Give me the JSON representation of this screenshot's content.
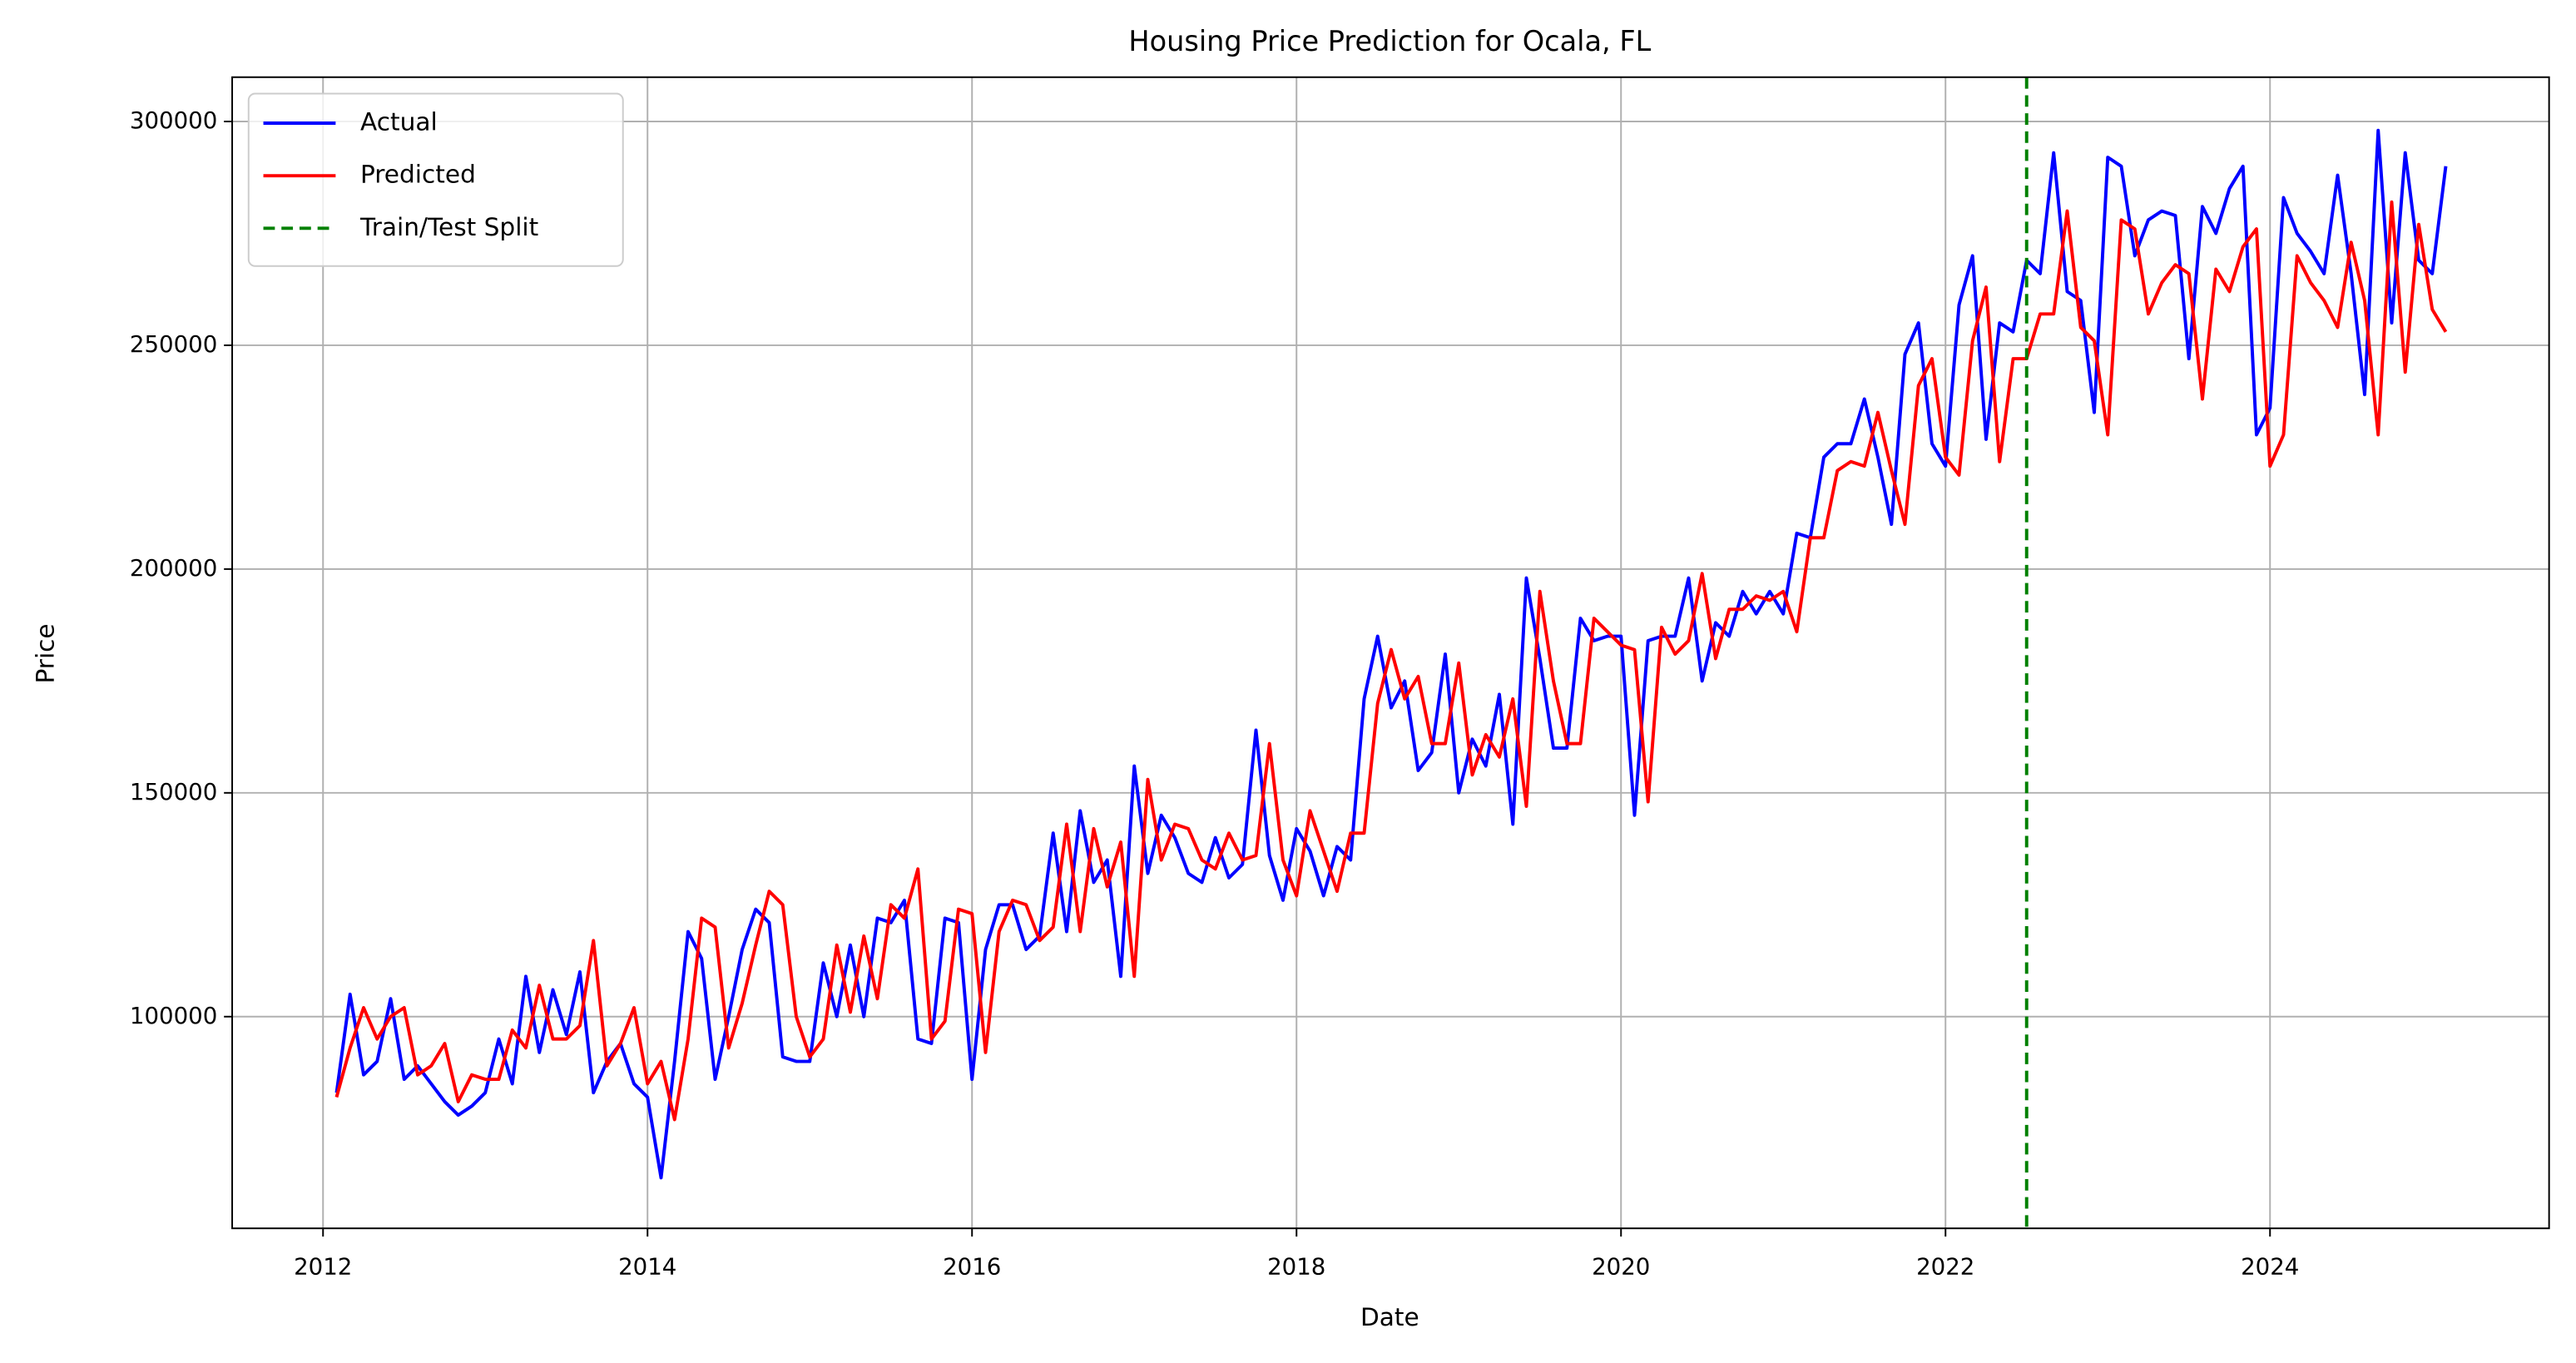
{
  "chart_data": {
    "type": "line",
    "title": "Housing Price Prediction for Ocala, FL",
    "x_label": "Date",
    "y_label": "Price",
    "x": [
      "2012-02",
      "2012-03",
      "2012-04",
      "2012-05",
      "2012-06",
      "2012-07",
      "2012-08",
      "2012-09",
      "2012-10",
      "2012-11",
      "2012-12",
      "2013-01",
      "2013-02",
      "2013-03",
      "2013-04",
      "2013-05",
      "2013-06",
      "2013-07",
      "2013-08",
      "2013-09",
      "2013-10",
      "2013-11",
      "2013-12",
      "2014-01",
      "2014-02",
      "2014-03",
      "2014-04",
      "2014-05",
      "2014-06",
      "2014-07",
      "2014-08",
      "2014-09",
      "2014-10",
      "2014-11",
      "2014-12",
      "2015-01",
      "2015-02",
      "2015-03",
      "2015-04",
      "2015-05",
      "2015-06",
      "2015-07",
      "2015-08",
      "2015-09",
      "2015-10",
      "2015-11",
      "2015-12",
      "2016-01",
      "2016-02",
      "2016-03",
      "2016-04",
      "2016-05",
      "2016-06",
      "2016-07",
      "2016-08",
      "2016-09",
      "2016-10",
      "2016-11",
      "2016-12",
      "2017-01",
      "2017-02",
      "2017-03",
      "2017-04",
      "2017-05",
      "2017-06",
      "2017-07",
      "2017-08",
      "2017-09",
      "2017-10",
      "2017-11",
      "2017-12",
      "2018-01",
      "2018-02",
      "2018-03",
      "2018-04",
      "2018-05",
      "2018-06",
      "2018-07",
      "2018-08",
      "2018-09",
      "2018-10",
      "2018-11",
      "2018-12",
      "2019-01",
      "2019-02",
      "2019-03",
      "2019-04",
      "2019-05",
      "2019-06",
      "2019-07",
      "2019-08",
      "2019-09",
      "2019-10",
      "2019-11",
      "2019-12",
      "2020-01",
      "2020-02",
      "2020-03",
      "2020-04",
      "2020-05",
      "2020-06",
      "2020-07",
      "2020-08",
      "2020-09",
      "2020-10",
      "2020-11",
      "2020-12",
      "2021-01",
      "2021-02",
      "2021-03",
      "2021-04",
      "2021-05",
      "2021-06",
      "2021-07",
      "2021-08",
      "2021-09",
      "2021-10",
      "2021-11",
      "2021-12",
      "2022-01",
      "2022-02",
      "2022-03",
      "2022-04",
      "2022-05",
      "2022-06",
      "2022-07",
      "2022-08",
      "2022-09",
      "2022-10",
      "2022-11",
      "2022-12",
      "2023-01",
      "2023-02",
      "2023-03",
      "2023-04",
      "2023-05",
      "2023-06",
      "2023-07",
      "2023-08",
      "2023-09",
      "2023-10",
      "2023-11",
      "2023-12",
      "2024-01",
      "2024-02",
      "2024-03",
      "2024-04",
      "2024-05",
      "2024-06",
      "2024-07",
      "2024-08",
      "2024-09",
      "2024-10",
      "2024-11",
      "2024-12",
      "2025-01",
      "2025-02"
    ],
    "series": [
      {
        "name": "Actual",
        "color": "#0000ff",
        "values": [
          83000,
          105000,
          87000,
          90000,
          104000,
          86000,
          89000,
          85000,
          81000,
          78000,
          80000,
          83000,
          95000,
          85000,
          109000,
          92000,
          106000,
          96000,
          110000,
          83000,
          90000,
          94000,
          85000,
          82000,
          64000,
          90000,
          119000,
          113000,
          86000,
          100000,
          115000,
          124000,
          121000,
          91000,
          90000,
          90000,
          112000,
          100000,
          116000,
          100000,
          122000,
          121000,
          126000,
          95000,
          94000,
          122000,
          121000,
          86000,
          115000,
          125000,
          125000,
          115000,
          118000,
          141000,
          119000,
          146000,
          130000,
          135000,
          109000,
          156000,
          132000,
          145000,
          140000,
          132000,
          130000,
          140000,
          131000,
          134000,
          164000,
          136000,
          126000,
          142000,
          137000,
          127000,
          138000,
          135000,
          171000,
          185000,
          169000,
          175000,
          155000,
          159000,
          181000,
          150000,
          162000,
          156000,
          172000,
          143000,
          198000,
          180000,
          160000,
          160000,
          189000,
          184000,
          185000,
          185000,
          145000,
          184000,
          185000,
          185000,
          198000,
          175000,
          188000,
          185000,
          195000,
          190000,
          195000,
          190000,
          208000,
          207000,
          225000,
          228000,
          228000,
          238000,
          225000,
          210000,
          248000,
          255000,
          228000,
          223000,
          259000,
          270000,
          229000,
          255000,
          253000,
          269000,
          266000,
          293000,
          262000,
          260000,
          235000,
          292000,
          290000,
          270000,
          278000,
          280000,
          279000,
          247000,
          281000,
          275000,
          285000,
          290000,
          230000,
          236000,
          283000,
          275000,
          271000,
          266000,
          288000,
          266000,
          239000,
          298000,
          255000,
          293000,
          269000,
          266000,
          290000
        ]
      },
      {
        "name": "Predicted",
        "color": "#ff0000",
        "values": [
          82000,
          93000,
          102000,
          95000,
          100000,
          102000,
          87000,
          89000,
          94000,
          81000,
          87000,
          86000,
          86000,
          97000,
          93000,
          107000,
          95000,
          95000,
          98000,
          117000,
          89000,
          94000,
          102000,
          85000,
          90000,
          77000,
          95000,
          122000,
          120000,
          93000,
          103000,
          116000,
          128000,
          125000,
          100000,
          91000,
          95000,
          116000,
          101000,
          118000,
          104000,
          125000,
          122000,
          133000,
          95000,
          99000,
          124000,
          123000,
          92000,
          119000,
          126000,
          125000,
          117000,
          120000,
          143000,
          119000,
          142000,
          129000,
          139000,
          109000,
          153000,
          135000,
          143000,
          142000,
          135000,
          133000,
          141000,
          135000,
          136000,
          161000,
          135000,
          127000,
          146000,
          137000,
          128000,
          141000,
          141000,
          170000,
          182000,
          171000,
          176000,
          161000,
          161000,
          179000,
          154000,
          163000,
          158000,
          171000,
          147000,
          195000,
          175000,
          161000,
          161000,
          189000,
          186000,
          183000,
          182000,
          148000,
          187000,
          181000,
          184000,
          199000,
          180000,
          191000,
          191000,
          194000,
          193000,
          195000,
          186000,
          207000,
          207000,
          222000,
          224000,
          223000,
          235000,
          222000,
          210000,
          241000,
          247000,
          225000,
          221000,
          251000,
          263000,
          224000,
          247000,
          247000,
          257000,
          257000,
          280000,
          254000,
          251000,
          230000,
          278000,
          276000,
          257000,
          264000,
          268000,
          266000,
          238000,
          267000,
          262000,
          272000,
          276000,
          223000,
          230000,
          270000,
          264000,
          260000,
          254000,
          273000,
          260000,
          230000,
          282000,
          244000,
          277000,
          258000,
          253000
        ]
      }
    ],
    "split": {
      "name": "Train/Test Split",
      "color": "#008000",
      "x": "2022-07"
    },
    "xlim": [
      2011.44,
      2025.72
    ],
    "xticks": [
      2012,
      2014,
      2016,
      2018,
      2020,
      2022,
      2024
    ],
    "ylim": [
      52700,
      309900
    ],
    "yticks": [
      100000,
      150000,
      200000,
      250000,
      300000
    ],
    "grid": true,
    "legend": "upper left"
  }
}
